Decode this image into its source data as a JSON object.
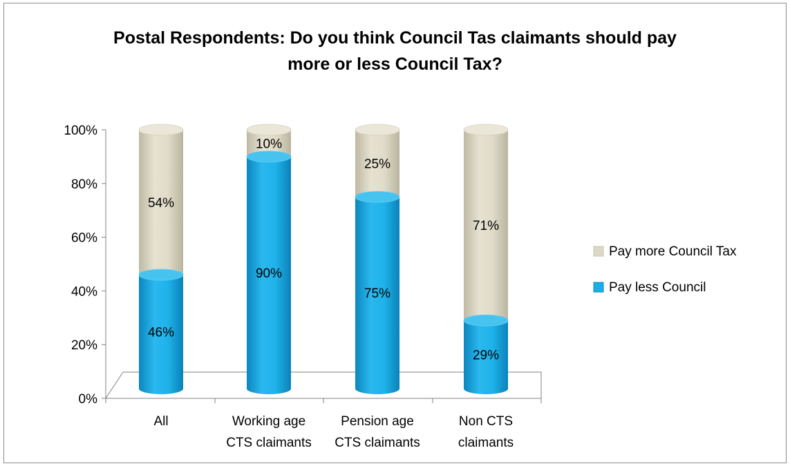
{
  "chart_data": {
    "type": "bar",
    "stacked": true,
    "title_lines": [
      "Postal Respondents: Do you think Council Tas claimants should pay",
      "more or less Council Tax?"
    ],
    "categories": [
      [
        "All"
      ],
      [
        "Working age",
        "CTS claimants"
      ],
      [
        "Pension age",
        "CTS claimants"
      ],
      [
        "Non CTS",
        "claimants"
      ]
    ],
    "series": [
      {
        "name": "Pay less Council",
        "values": [
          46,
          90,
          75,
          29
        ],
        "labels": [
          "46%",
          "90%",
          "75%",
          "29%"
        ],
        "color": "#1aaee6"
      },
      {
        "name": "Pay more Council Tax",
        "values": [
          54,
          10,
          25,
          71
        ],
        "labels": [
          "54%",
          "10%",
          "25%",
          "71%"
        ],
        "color": "#dcd8c6"
      }
    ],
    "y_ticks": [
      "0%",
      "20%",
      "40%",
      "60%",
      "80%",
      "100%"
    ],
    "ylim": [
      0,
      100
    ],
    "legend_position": "right",
    "grid": false
  }
}
